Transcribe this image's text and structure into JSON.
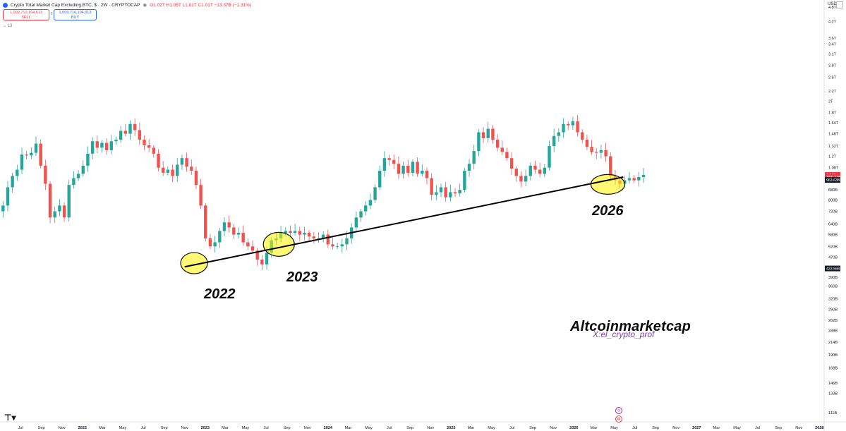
{
  "header": {
    "title": "Crypto Total Market Cap Excluding BTC, $ · 2W · CRYPTOCAP",
    "ohlc": "O1.02T H1.05T L1.01T C1.01T −13.37B (−1.31%)"
  },
  "trade": {
    "sell_price": "1,009,710,104,613",
    "sell_label": "SELL",
    "spread": "0",
    "buy_price": "1,009,716,104,613",
    "buy_label": "BUY"
  },
  "indicator_count": "13",
  "currency": "USD",
  "watermark": "Altcoinmarketcap",
  "handle": "X:el_crypto_prof",
  "year_labels": [
    "2022",
    "2023",
    "2026"
  ],
  "price_tags": [
    {
      "label": "1.01T",
      "value": 1010,
      "color": "#f23645"
    },
    {
      "label": "TBD 19h",
      "value": 990,
      "color": "#f23645"
    },
    {
      "label": "963.63B",
      "value": 963.63,
      "color": "#131722"
    },
    {
      "label": "423.56B",
      "value": 423.56,
      "color": "#131722"
    }
  ],
  "chart_data": {
    "type": "candlestick",
    "title": "Crypto Total Market Cap Excluding BTC, $ · 2W · CRYPTOCAP",
    "y_scale": "log",
    "y_unit": "USD",
    "ylim": [
      100,
      6000
    ],
    "y_ticks": [
      {
        "label": "4.8T",
        "v": 4800
      },
      {
        "label": "4.2T",
        "v": 4200
      },
      {
        "label": "3.6T",
        "v": 3600
      },
      {
        "label": "3.4T",
        "v": 3400
      },
      {
        "label": "3.1T",
        "v": 3100
      },
      {
        "label": "2.8T",
        "v": 2800
      },
      {
        "label": "2.5T",
        "v": 2500
      },
      {
        "label": "2.2T",
        "v": 2200
      },
      {
        "label": "2T",
        "v": 2000
      },
      {
        "label": "1.8T",
        "v": 1800
      },
      {
        "label": "1.64T",
        "v": 1640
      },
      {
        "label": "1.48T",
        "v": 1480
      },
      {
        "label": "1.32T",
        "v": 1320
      },
      {
        "label": "1.2T",
        "v": 1200
      },
      {
        "label": "1.08T",
        "v": 1080
      },
      {
        "label": "880B",
        "v": 880
      },
      {
        "label": "800B",
        "v": 800
      },
      {
        "label": "720B",
        "v": 720
      },
      {
        "label": "640B",
        "v": 640
      },
      {
        "label": "580B",
        "v": 580
      },
      {
        "label": "520B",
        "v": 520
      },
      {
        "label": "470B",
        "v": 470
      },
      {
        "label": "390B",
        "v": 390
      },
      {
        "label": "360B",
        "v": 360
      },
      {
        "label": "320B",
        "v": 320
      },
      {
        "label": "290B",
        "v": 290
      },
      {
        "label": "262B",
        "v": 262
      },
      {
        "label": "238B",
        "v": 238
      },
      {
        "label": "214B",
        "v": 214
      },
      {
        "label": "190B",
        "v": 190
      },
      {
        "label": "168B",
        "v": 168
      },
      {
        "label": "146B",
        "v": 146
      },
      {
        "label": "133B",
        "v": 133
      },
      {
        "label": "111B",
        "v": 111
      }
    ],
    "x_start": "2021-05-01",
    "x_end": "2028-01-15",
    "x_ticks": [
      {
        "label": "May",
        "d": "2021-05-01"
      },
      {
        "label": "Jul",
        "d": "2021-07-01"
      },
      {
        "label": "Sep",
        "d": "2021-09-01"
      },
      {
        "label": "Nov",
        "d": "2021-11-01"
      },
      {
        "label": "2022",
        "d": "2022-01-01"
      },
      {
        "label": "Mar",
        "d": "2022-03-01"
      },
      {
        "label": "May",
        "d": "2022-05-01"
      },
      {
        "label": "Jul",
        "d": "2022-07-01"
      },
      {
        "label": "Sep",
        "d": "2022-09-01"
      },
      {
        "label": "Nov",
        "d": "2022-11-01"
      },
      {
        "label": "2023",
        "d": "2023-01-01"
      },
      {
        "label": "Mar",
        "d": "2023-03-01"
      },
      {
        "label": "May",
        "d": "2023-05-01"
      },
      {
        "label": "Jul",
        "d": "2023-07-01"
      },
      {
        "label": "Sep",
        "d": "2023-09-01"
      },
      {
        "label": "Nov",
        "d": "2023-11-01"
      },
      {
        "label": "2024",
        "d": "2024-01-01"
      },
      {
        "label": "Mar",
        "d": "2024-03-01"
      },
      {
        "label": "May",
        "d": "2024-05-01"
      },
      {
        "label": "Jul",
        "d": "2024-07-01"
      },
      {
        "label": "Sep",
        "d": "2024-09-01"
      },
      {
        "label": "Nov",
        "d": "2024-11-01"
      },
      {
        "label": "2025",
        "d": "2025-01-01"
      },
      {
        "label": "Mar",
        "d": "2025-03-01"
      },
      {
        "label": "May",
        "d": "2025-05-01"
      },
      {
        "label": "Jul",
        "d": "2025-07-01"
      },
      {
        "label": "Sep",
        "d": "2025-09-01"
      },
      {
        "label": "Nov",
        "d": "2025-11-01"
      },
      {
        "label": "2026",
        "d": "2026-01-01"
      },
      {
        "label": "Mar",
        "d": "2026-03-01"
      },
      {
        "label": "May",
        "d": "2026-05-01"
      },
      {
        "label": "Jul",
        "d": "2026-07-01"
      },
      {
        "label": "Sep",
        "d": "2026-09-01"
      },
      {
        "label": "Nov",
        "d": "2026-11-01"
      },
      {
        "label": "2027",
        "d": "2027-01-01"
      },
      {
        "label": "Mar",
        "d": "2027-03-01"
      },
      {
        "label": "May",
        "d": "2027-05-01"
      },
      {
        "label": "Jul",
        "d": "2027-07-01"
      },
      {
        "label": "Sep",
        "d": "2027-09-01"
      },
      {
        "label": "Nov",
        "d": "2027-11-01"
      },
      {
        "label": "2028",
        "d": "2028-01-01"
      }
    ],
    "candle_interval_days": 14,
    "first_candle_date": "2021-04-26",
    "close": [
      720,
      760,
      900,
      1000,
      1060,
      1220,
      1210,
      1240,
      1350,
      1100,
      930,
      680,
      720,
      760,
      680,
      920,
      980,
      1020,
      1100,
      1230,
      1380,
      1300,
      1360,
      1270,
      1380,
      1400,
      1520,
      1480,
      1620,
      1530,
      1400,
      1330,
      1300,
      1230,
      1080,
      1030,
      1060,
      1000,
      1110,
      1180,
      1090,
      1050,
      920,
      760,
      560,
      520,
      540,
      600,
      650,
      620,
      580,
      590,
      540,
      520,
      500,
      460,
      440,
      490,
      550,
      560,
      590,
      600,
      590,
      600,
      580,
      590,
      570,
      560,
      560,
      580,
      530,
      520,
      520,
      530,
      560,
      620,
      680,
      720,
      760,
      800,
      900,
      1050,
      1180,
      1160,
      1120,
      1020,
      1100,
      1030,
      1140,
      1020,
      1050,
      980,
      840,
      860,
      900,
      820,
      860,
      850,
      880,
      1050,
      1120,
      1260,
      1500,
      1420,
      1550,
      1400,
      1300,
      1250,
      1180,
      1070,
      1000,
      950,
      1000,
      1100,
      1060,
      1020,
      1080,
      1320,
      1450,
      1500,
      1620,
      1600,
      1660,
      1500,
      1400,
      1310,
      1250,
      1240,
      1270,
      1200,
      1000,
      960,
      930,
      960,
      980,
      960,
      990,
      1010
    ]
  },
  "annotations": {
    "trendline": [
      {
        "d": "2022-11-01",
        "v": 430
      },
      {
        "d": "2026-05-28",
        "v": 990
      }
    ],
    "ellipses": [
      {
        "d": "2022-11-29",
        "v": 445,
        "label": "2022"
      },
      {
        "d": "2023-08-08",
        "v": 530,
        "label": "2023"
      },
      {
        "d": "2026-04-12",
        "v": 925,
        "label": "2026"
      }
    ]
  },
  "colors": {
    "up": "#26a69a",
    "down": "#ef5350",
    "trendline": "#000000",
    "highlight": "#fff200"
  }
}
